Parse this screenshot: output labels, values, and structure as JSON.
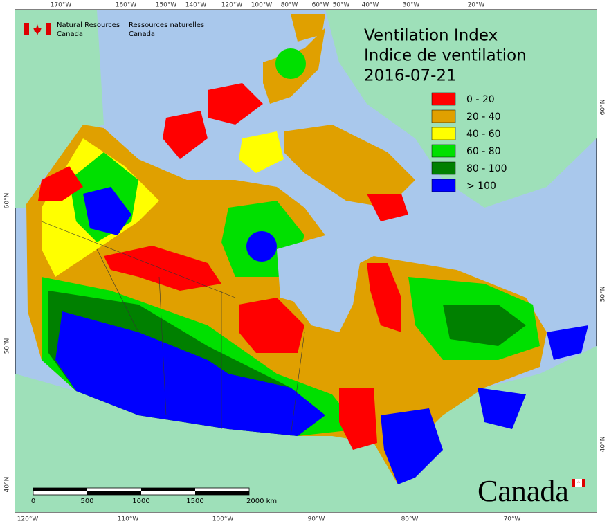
{
  "header": {
    "agency_en": [
      "Natural Resources",
      "Canada"
    ],
    "agency_fr": [
      "Ressources naturelles",
      "Canada"
    ]
  },
  "title": [
    "Ventilation Index",
    "Indice de ventilation",
    "2016-07-21"
  ],
  "legend": [
    {
      "label": "0 - 20",
      "color": "#ff0000"
    },
    {
      "label": "20 - 40",
      "color": "#e0a000"
    },
    {
      "label": "40 - 60",
      "color": "#ffff00"
    },
    {
      "label": "60 - 80",
      "color": "#00e000"
    },
    {
      "label": "80 - 100",
      "color": "#008000"
    },
    {
      "label": "> 100",
      "color": "#0000ff"
    }
  ],
  "graticule": {
    "top": [
      "170°W",
      "160°W",
      "150°W",
      "140°W",
      "120°W",
      "100°W",
      "80°W",
      "60°W",
      "50°W",
      "40°W",
      "30°W",
      "20°W"
    ],
    "bottom": [
      "120°W",
      "110°W",
      "100°W",
      "90°W",
      "80°W",
      "70°W"
    ],
    "right": [
      "60°N",
      "50°N",
      "40°N"
    ],
    "left": [
      "60°N",
      "50°N",
      "40°N"
    ]
  },
  "scale_bar": {
    "ticks": [
      "0",
      "500",
      "1000",
      "1500",
      "2000 km"
    ]
  },
  "wordmark": "Canada"
}
